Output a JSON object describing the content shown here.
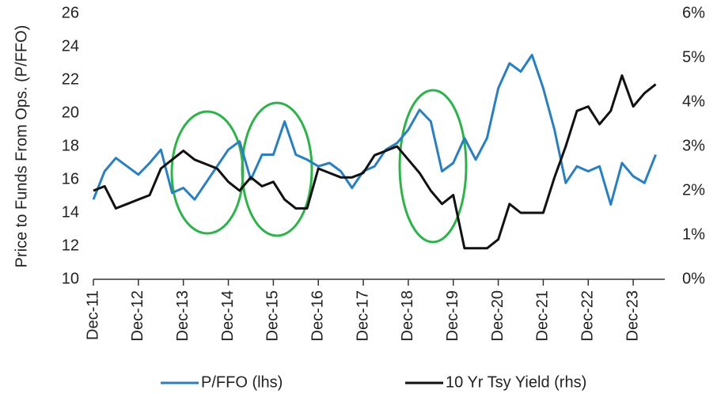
{
  "chart_data": {
    "type": "line",
    "y_label": "Price to Funds From Ops. (P/FFO)",
    "categories": [
      "Dec-11",
      null,
      null,
      null,
      "Dec-12",
      null,
      null,
      null,
      "Dec-13",
      null,
      null,
      null,
      "Dec-14",
      null,
      null,
      null,
      "Dec-15",
      null,
      null,
      null,
      "Dec-16",
      null,
      null,
      null,
      "Dec-17",
      null,
      null,
      null,
      "Dec-18",
      null,
      null,
      null,
      "Dec-19",
      null,
      null,
      null,
      "Dec-20",
      null,
      null,
      null,
      "Dec-21",
      null,
      null,
      null,
      "Dec-22",
      null,
      null,
      null,
      "Dec-23",
      null,
      null
    ],
    "series": [
      {
        "name": "P/FFO (lhs)",
        "color": "#2a7fc1",
        "axis": "y",
        "values": [
          14.8,
          16.5,
          17.3,
          16.8,
          16.3,
          17,
          17.8,
          15.2,
          15.5,
          14.8,
          15.8,
          16.8,
          17.8,
          18.3,
          16,
          17.5,
          17.5,
          19.5,
          17.5,
          17.2,
          16.8,
          17,
          16.5,
          15.5,
          16.5,
          16.8,
          17.8,
          18.2,
          19,
          20.2,
          19.5,
          16.5,
          17,
          18.5,
          17.2,
          18.5,
          21.5,
          23,
          22.5,
          23.5,
          21.5,
          19,
          15.8,
          16.8,
          16.5,
          16.8,
          14.5,
          17,
          16.2,
          15.8,
          17.5
        ]
      },
      {
        "name": "10 Yr Tsy Yield (rhs)",
        "color": "#111111",
        "axis": "y2",
        "values": [
          2.0,
          2.1,
          1.6,
          1.7,
          1.8,
          1.9,
          2.5,
          2.7,
          2.9,
          2.7,
          2.6,
          2.5,
          2.2,
          2.0,
          2.3,
          2.1,
          2.2,
          1.8,
          1.6,
          1.6,
          2.5,
          2.4,
          2.3,
          2.3,
          2.4,
          2.8,
          2.9,
          3.0,
          2.7,
          2.4,
          2.0,
          1.7,
          1.9,
          0.7,
          0.7,
          0.7,
          0.9,
          1.7,
          1.5,
          1.5,
          1.5,
          2.3,
          3.0,
          3.8,
          3.9,
          3.5,
          3.8,
          4.6,
          3.9,
          4.2,
          4.4
        ]
      }
    ],
    "ylim": [
      10,
      26
    ],
    "yticks": [
      10,
      12,
      14,
      16,
      18,
      20,
      22,
      24,
      26
    ],
    "y2lim": [
      0,
      6
    ],
    "y2ticks": [
      {
        "value": 0,
        "label": "0%"
      },
      {
        "value": 1,
        "label": "1%"
      },
      {
        "value": 2,
        "label": "2%"
      },
      {
        "value": 3,
        "label": "3%"
      },
      {
        "value": 4,
        "label": "4%"
      },
      {
        "value": 5,
        "label": "5%"
      },
      {
        "value": 6,
        "label": "6%"
      }
    ],
    "legend": "bottom"
  }
}
